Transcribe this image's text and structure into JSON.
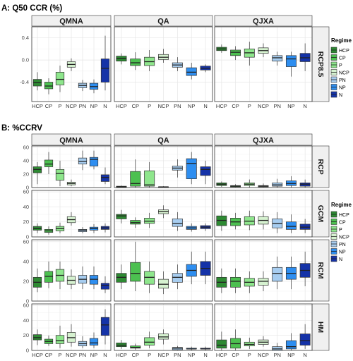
{
  "chart_data": [
    {
      "type": "box",
      "title": "A: Q50 CCR (%)",
      "panels": [
        "QMNA",
        "QA",
        "QJXA"
      ],
      "rows": [
        "RCP8.5"
      ],
      "categories": [
        "HCP",
        "CP",
        "P",
        "NCP",
        "PN",
        "NP",
        "N"
      ],
      "yticks": [
        0.4,
        0.0,
        -0.4
      ],
      "yticks_labels": [
        "0.4",
        "0.0",
        "-0.4"
      ],
      "ylim": [
        -0.75,
        0.6
      ],
      "grid": true,
      "boxes": {
        "RCP8.5": {
          "QMNA": [
            [
              -0.55,
              -0.47,
              -0.41,
              -0.35,
              -0.22
            ],
            [
              -0.62,
              -0.52,
              -0.47,
              -0.4,
              -0.33
            ],
            [
              -0.58,
              -0.45,
              -0.35,
              -0.22,
              -0.1
            ],
            [
              -0.2,
              -0.13,
              -0.08,
              -0.03,
              0.03
            ],
            [
              -0.56,
              -0.5,
              -0.46,
              -0.42,
              -0.36
            ],
            [
              -0.6,
              -0.53,
              -0.48,
              -0.42,
              -0.35
            ],
            [
              -0.55,
              -0.4,
              -0.15,
              0.02,
              0.44
            ]
          ],
          "QA": [
            [
              -0.08,
              -0.02,
              0.03,
              0.07,
              0.12
            ],
            [
              -0.18,
              -0.1,
              -0.05,
              0.02,
              0.14
            ],
            [
              -0.2,
              -0.1,
              -0.03,
              0.05,
              0.18
            ],
            [
              -0.05,
              0.01,
              0.05,
              0.1,
              0.2
            ],
            [
              -0.2,
              -0.13,
              -0.09,
              -0.05,
              0.05
            ],
            [
              -0.35,
              -0.28,
              -0.22,
              -0.14,
              -0.05
            ],
            [
              -0.22,
              -0.18,
              -0.15,
              -0.11,
              -0.08
            ]
          ],
          "QJXA": [
            [
              0.13,
              0.17,
              0.2,
              0.23,
              0.28
            ],
            [
              0.0,
              0.08,
              0.14,
              0.18,
              0.25
            ],
            [
              -0.1,
              0.05,
              0.13,
              0.2,
              0.33
            ],
            [
              0.05,
              0.12,
              0.17,
              0.22,
              0.3
            ],
            [
              -0.1,
              -0.02,
              0.04,
              0.08,
              0.15
            ],
            [
              -0.3,
              -0.12,
              0.02,
              0.08,
              0.15
            ],
            [
              -0.2,
              -0.03,
              0.04,
              0.12,
              0.3
            ]
          ]
        }
      }
    },
    {
      "type": "box",
      "title": "B: %CCRV",
      "panels": [
        "QMNA",
        "QA",
        "QJXA"
      ],
      "rows": [
        "RCP",
        "GCM",
        "RCM",
        "HM"
      ],
      "categories": [
        "HCP",
        "CP",
        "P",
        "NCP",
        "PN",
        "NP",
        "N"
      ],
      "yticks": [
        0,
        20,
        40,
        60
      ],
      "yticks_labels": [
        "0",
        "20",
        "40",
        "60"
      ],
      "ylim": [
        0,
        62
      ],
      "grid": true,
      "boxes": {
        "RCP": {
          "QMNA": [
            [
              5,
              22,
              27,
              31,
              38
            ],
            [
              20,
              31,
              35,
              41,
              53
            ],
            [
              2,
              11,
              21,
              27,
              40
            ],
            [
              2,
              4,
              6,
              8,
              12
            ],
            [
              26,
              35,
              39,
              44,
              55
            ],
            [
              27,
              32,
              42,
              45,
              55
            ],
            [
              5,
              9,
              15,
              19,
              30
            ]
          ],
          "QA": [
            [
              0,
              0,
              1,
              2,
              3
            ],
            [
              0,
              2,
              6,
              24,
              42
            ],
            [
              0,
              2,
              4,
              25,
              38
            ],
            [
              0,
              0,
              1,
              1,
              2
            ],
            [
              15,
              26,
              29,
              32,
              42
            ],
            [
              5,
              13,
              36,
              43,
              53
            ],
            [
              5,
              18,
              27,
              31,
              40
            ]
          ],
          "QJXA": [
            [
              1,
              3,
              5,
              7,
              9
            ],
            [
              0,
              1,
              2,
              3,
              5
            ],
            [
              0,
              3,
              5,
              7,
              12
            ],
            [
              0,
              1,
              2,
              3,
              6
            ],
            [
              0,
              2,
              4,
              7,
              13
            ],
            [
              0,
              3,
              6,
              10,
              17
            ],
            [
              0,
              2,
              5,
              7,
              12
            ]
          ]
        },
        "GCM": {
          "QMNA": [
            [
              5,
              9,
              11,
              14,
              18
            ],
            [
              3,
              6,
              8,
              10,
              14
            ],
            [
              5,
              8,
              11,
              14,
              19
            ],
            [
              15,
              19,
              23,
              27,
              33
            ],
            [
              5,
              7,
              9,
              10,
              13
            ],
            [
              5,
              9,
              11,
              13,
              17
            ],
            [
              6,
              10,
              12,
              14,
              18
            ]
          ],
          "QA": [
            [
              18,
              24,
              28,
              30,
              36
            ],
            [
              12,
              17,
              19,
              22,
              26
            ],
            [
              12,
              18,
              21,
              25,
              32
            ],
            [
              25,
              31,
              34,
              36,
              42
            ],
            [
              8,
              14,
              18,
              24,
              33
            ],
            [
              7,
              10,
              12,
              14,
              18
            ],
            [
              8,
              11,
              13,
              15,
              18
            ]
          ],
          "QJXA": [
            [
              8,
              15,
              22,
              28,
              35
            ],
            [
              10,
              15,
              20,
              25,
              32
            ],
            [
              9,
              16,
              21,
              27,
              35
            ],
            [
              10,
              17,
              22,
              27,
              34
            ],
            [
              5,
              12,
              18,
              24,
              33
            ],
            [
              5,
              10,
              14,
              20,
              30
            ],
            [
              5,
              10,
              13,
              17,
              24
            ]
          ]
        },
        "RCM": {
          "QMNA": [
            [
              9,
              14,
              19,
              24,
              33
            ],
            [
              13,
              19,
              25,
              30,
              40
            ],
            [
              12,
              20,
              26,
              32,
              40
            ],
            [
              12,
              17,
              21,
              25,
              32
            ],
            [
              12,
              18,
              22,
              26,
              35
            ],
            [
              12,
              17,
              22,
              26,
              35
            ],
            [
              8,
              12,
              16,
              18,
              25
            ]
          ],
          "QA": [
            [
              12,
              19,
              24,
              28,
              37
            ],
            [
              10,
              20,
              28,
              39,
              60
            ],
            [
              8,
              17,
              24,
              30,
              40
            ],
            [
              7,
              13,
              17,
              22,
              30
            ],
            [
              12,
              19,
              24,
              28,
              37
            ],
            [
              17,
              25,
              31,
              37,
              50
            ],
            [
              17,
              26,
              33,
              40,
              50
            ]
          ],
          "QJXA": [
            [
              8,
              14,
              19,
              24,
              33
            ],
            [
              8,
              14,
              20,
              24,
              33
            ],
            [
              8,
              15,
              19,
              23,
              30
            ],
            [
              10,
              16,
              20,
              23,
              30
            ],
            [
              12,
              20,
              28,
              34,
              45
            ],
            [
              12,
              22,
              28,
              34,
              45
            ],
            [
              15,
              24,
              31,
              38,
              50
            ]
          ]
        },
        "HM": {
          "QMNA": [
            [
              7,
              14,
              17,
              21,
              28
            ],
            [
              6,
              9,
              12,
              15,
              20
            ],
            [
              3,
              9,
              13,
              20,
              33
            ],
            [
              5,
              11,
              17,
              24,
              35
            ],
            [
              3,
              6,
              9,
              12,
              19
            ],
            [
              3,
              7,
              10,
              16,
              24
            ],
            [
              8,
              20,
              34,
              44,
              55
            ]
          ],
          "QA": [
            [
              2,
              5,
              7,
              10,
              14
            ],
            [
              1,
              3,
              4,
              6,
              9
            ],
            [
              3,
              7,
              11,
              17,
              25
            ],
            [
              8,
              15,
              18,
              22,
              28
            ],
            [
              0,
              1,
              3,
              4,
              6
            ],
            [
              0,
              2,
              2,
              3,
              5
            ],
            [
              0,
              2,
              2,
              3,
              5
            ]
          ],
          "QJXA": [
            [
              0,
              3,
              7,
              14,
              25
            ],
            [
              0,
              3,
              9,
              16,
              28
            ],
            [
              2,
              6,
              8,
              11,
              17
            ],
            [
              5,
              8,
              11,
              14,
              19
            ],
            [
              0,
              0,
              2,
              5,
              10
            ],
            [
              0,
              2,
              5,
              13,
              23
            ],
            [
              2,
              7,
              13,
              22,
              35
            ]
          ]
        }
      }
    }
  ],
  "legend": {
    "title": "Regime",
    "items": [
      "HCP",
      "CP",
      "P",
      "NCP",
      "PN",
      "NP",
      "N"
    ],
    "colors": [
      "#2d8a32",
      "#4cc050",
      "#8ee68c",
      "#d6f2d0",
      "#a7cdf0",
      "#2e8ef0",
      "#1533a8"
    ]
  },
  "style": {
    "grid": "#e6e6e6",
    "strip_fill": "#f0f0f0",
    "border": "#333333"
  }
}
